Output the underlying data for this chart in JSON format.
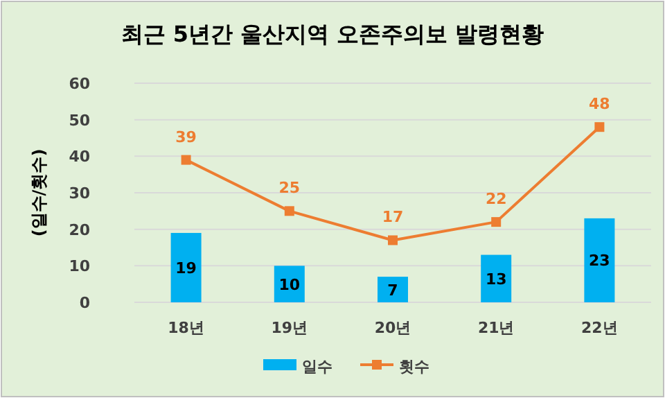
{
  "chart_data": {
    "type": "bar",
    "title": "최근 5년간 울산지역 오존주의보 발령현황",
    "ylabel": "(일수/횟수)",
    "categories": [
      "18년",
      "19년",
      "20년",
      "21년",
      "22년"
    ],
    "series": [
      {
        "name": "일수",
        "color": "#00b0f0",
        "values": [
          19,
          10,
          7,
          13,
          23
        ]
      },
      {
        "name": "횟수",
        "type": "line",
        "color": "#ed7d31",
        "marker": "square",
        "values": [
          39,
          25,
          17,
          22,
          48
        ]
      }
    ],
    "ylim": [
      0,
      60
    ],
    "yticks": [
      0,
      10,
      20,
      30,
      40,
      50,
      60
    ],
    "grid": "y",
    "legend": "bottom",
    "data_labels": true
  }
}
